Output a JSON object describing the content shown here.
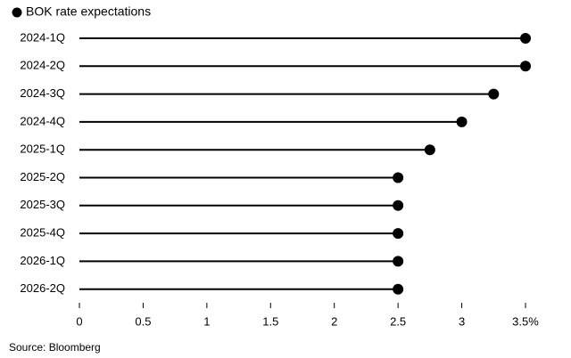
{
  "chart_data": {
    "type": "lollipop",
    "orientation": "horizontal",
    "categories": [
      "2024-1Q",
      "2024-2Q",
      "2024-3Q",
      "2024-4Q",
      "2025-1Q",
      "2025-2Q",
      "2025-3Q",
      "2025-4Q",
      "2026-1Q",
      "2026-2Q"
    ],
    "series": [
      {
        "name": "BOK rate expectations",
        "color": "#000000",
        "values": [
          3.5,
          3.5,
          3.25,
          3.0,
          2.75,
          2.5,
          2.5,
          2.5,
          2.5,
          2.5
        ]
      }
    ],
    "xlim": [
      0,
      3.5
    ],
    "xticks": [
      0,
      0.5,
      1.0,
      1.5,
      2.0,
      2.5,
      3.0,
      {
        "value": 3.5,
        "label": "3.5%"
      }
    ],
    "source": "Source: Bloomberg"
  }
}
